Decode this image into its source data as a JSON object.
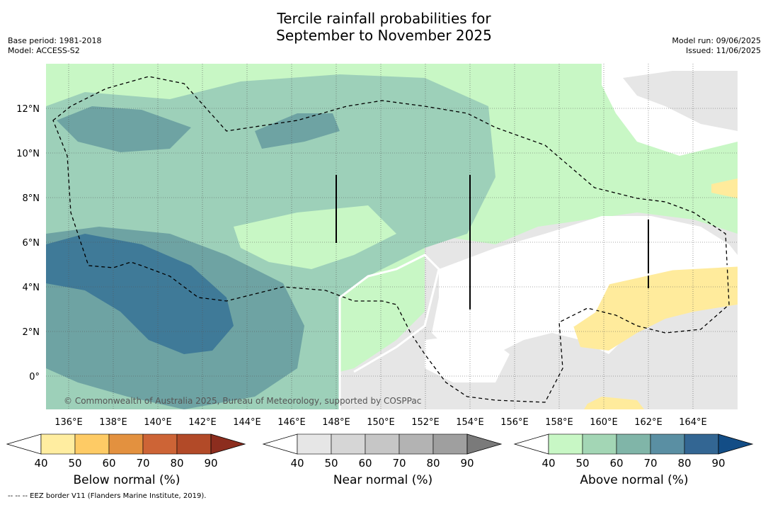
{
  "title_line1": "Tercile rainfall probabilities for",
  "title_line2": "September to November 2025",
  "meta_left": {
    "base_period": "Base period: 1981-2018",
    "model": "Model: ACCESS-S2"
  },
  "meta_right": {
    "model_run": "Model run: 09/06/2025",
    "issued": "Issued: 11/06/2025"
  },
  "copyright": "© Commonwealth of Australia 2025, Bureau of Meteorology, supported by COSPPac",
  "footnote": "--  --  -- EEZ border V11 (Flanders Marine Institute, 2019).",
  "map": {
    "lon_labels": [
      "136°E",
      "138°E",
      "140°E",
      "142°E",
      "144°E",
      "146°E",
      "148°E",
      "150°E",
      "152°E",
      "154°E",
      "156°E",
      "158°E",
      "160°E",
      "162°E",
      "164°E"
    ],
    "lat_labels": [
      "12°N",
      "10°N",
      "8°N",
      "6°N",
      "4°N",
      "2°N",
      "0°"
    ],
    "colors": {
      "near_normal_light": "#e6e6e6",
      "above_40": "#c8f7c5",
      "above_50": "#9dd0b9",
      "above_60": "#6ea3a3",
      "above_70": "#3f7a98",
      "below_40": "#ffeb9c"
    }
  },
  "colorbars": [
    {
      "name": "below",
      "label": "Below normal (%)",
      "ticks": [
        "40",
        "50",
        "60",
        "70",
        "80",
        "90"
      ],
      "colors": [
        "#ffffff",
        "#ffeda0",
        "#fecb65",
        "#e3913f",
        "#cd6436",
        "#b24a28",
        "#8c2d1e"
      ]
    },
    {
      "name": "near",
      "label": "Near normal (%)",
      "ticks": [
        "40",
        "50",
        "60",
        "70",
        "80",
        "90"
      ],
      "colors": [
        "#ffffff",
        "#e6e6e6",
        "#d6d6d6",
        "#c6c6c6",
        "#b3b3b3",
        "#9f9f9f",
        "#7a7a7a"
      ]
    },
    {
      "name": "above",
      "label": "Above normal (%)",
      "ticks": [
        "40",
        "50",
        "60",
        "70",
        "80",
        "90"
      ],
      "colors": [
        "#ffffff",
        "#c8f7c5",
        "#a3d6b5",
        "#80b5a8",
        "#5a8fa3",
        "#336693",
        "#134d86"
      ]
    }
  ]
}
